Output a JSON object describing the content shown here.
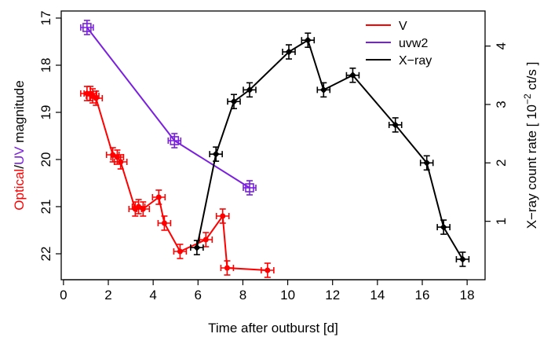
{
  "chart_data": {
    "type": "scatter",
    "xlabel": "Time after outburst [d]",
    "ylabel_left": [
      {
        "text": "Optical",
        "color": "#ff0000"
      },
      {
        "text": "/",
        "color": "#000000"
      },
      {
        "text": "UV",
        "color": "#7a1fe0"
      },
      {
        "text": " magnitude",
        "color": "#000000"
      }
    ],
    "ylabel_right_parts": [
      "X−ray count rate [ 10",
      "−2",
      " ct/s ]"
    ],
    "x_ticks": [
      0,
      2,
      4,
      6,
      8,
      10,
      12,
      14,
      16,
      18
    ],
    "xlim": [
      -0.1,
      18.8
    ],
    "ylim_left": [
      22.55,
      16.85
    ],
    "ylim_right": [
      0,
      4.6
    ],
    "y_ticks_left": [
      17,
      18,
      19,
      20,
      21,
      22
    ],
    "y_ticks_right": [
      1,
      2,
      3,
      4
    ],
    "grid": false,
    "legend_position": "top-right",
    "series": [
      {
        "name": "V",
        "axis": "left",
        "color": "#ff0000",
        "marker": "circle",
        "points": [
          {
            "x": 1.05,
            "y": 18.6
          },
          {
            "x": 1.2,
            "y": 18.6
          },
          {
            "x": 1.3,
            "y": 18.65
          },
          {
            "x": 1.45,
            "y": 18.7
          },
          {
            "x": 2.2,
            "y": 19.9
          },
          {
            "x": 2.4,
            "y": 19.95
          },
          {
            "x": 2.55,
            "y": 20.05
          },
          {
            "x": 3.2,
            "y": 21.05
          },
          {
            "x": 3.35,
            "y": 21.0
          },
          {
            "x": 3.55,
            "y": 21.05
          },
          {
            "x": 4.25,
            "y": 20.8
          },
          {
            "x": 4.5,
            "y": 21.35
          },
          {
            "x": 5.2,
            "y": 21.95
          },
          {
            "x": 6.35,
            "y": 21.7
          },
          {
            "x": 7.1,
            "y": 21.2
          },
          {
            "x": 7.3,
            "y": 22.3
          },
          {
            "x": 9.1,
            "y": 22.35
          }
        ]
      },
      {
        "name": "uvw2",
        "axis": "left",
        "color": "#7a1fe0",
        "marker": "square",
        "points": [
          {
            "x": 1.05,
            "y": 17.2
          },
          {
            "x": 4.95,
            "y": 19.6
          },
          {
            "x": 8.3,
            "y": 20.6
          }
        ]
      },
      {
        "name": "X−ray",
        "axis": "right",
        "color": "#000000",
        "marker": "diamond",
        "points": [
          {
            "x": 5.95,
            "y": 0.55
          },
          {
            "x": 6.8,
            "y": 2.15
          },
          {
            "x": 7.6,
            "y": 3.05
          },
          {
            "x": 8.3,
            "y": 3.25
          },
          {
            "x": 10.05,
            "y": 3.9
          },
          {
            "x": 10.9,
            "y": 4.1
          },
          {
            "x": 11.6,
            "y": 3.25
          },
          {
            "x": 12.9,
            "y": 3.5
          },
          {
            "x": 14.8,
            "y": 2.65
          },
          {
            "x": 16.2,
            "y": 2.0
          },
          {
            "x": 16.95,
            "y": 0.9
          },
          {
            "x": 17.8,
            "y": 0.35
          }
        ]
      }
    ]
  }
}
